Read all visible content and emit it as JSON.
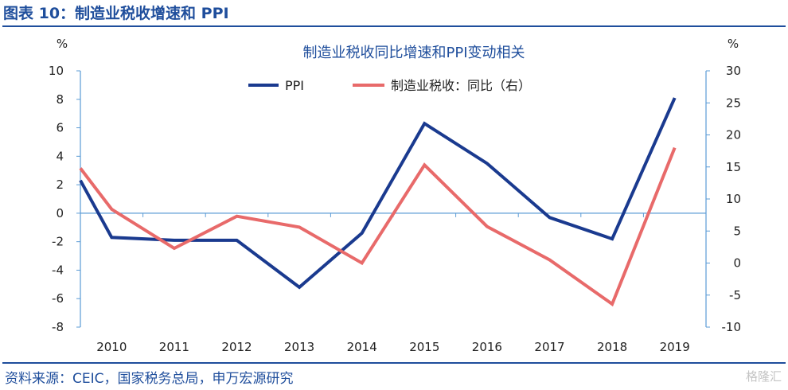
{
  "header": {
    "figure_title": "图表 10：制造业税收增速和 PPI"
  },
  "footer": {
    "source": "资料来源：CEIC，国家税务总局，申万宏源研究",
    "watermark": "格隆汇"
  },
  "colors": {
    "brand": "#1f4e9c",
    "ppi": "#1a3a8f",
    "tax": "#e86a6a",
    "axis": "#5b9bd5",
    "text": "#222222"
  },
  "chart_data": {
    "type": "line",
    "title": "制造业税收同比增速和PPI变动相关",
    "left_unit": "%",
    "right_unit": "%",
    "categories": [
      "2010",
      "2011",
      "2012",
      "2013",
      "2014",
      "2015",
      "2016",
      "2017",
      "2018",
      "2019"
    ],
    "y_left": {
      "min": -8,
      "max": 10,
      "ticks": [
        "10",
        "8",
        "6",
        "4",
        "2",
        "0",
        "-2",
        "-4",
        "-6",
        "-8"
      ]
    },
    "y_right": {
      "min": -10,
      "max": 30,
      "ticks": [
        "30",
        "25",
        "20",
        "15",
        "10",
        "5",
        "0",
        "-5",
        "-10"
      ]
    },
    "legend_position": "top-center",
    "grid": false,
    "series": [
      {
        "name": "PPI",
        "axis": "left",
        "color": "#1a3a8f",
        "x": [
          2009.5,
          2010,
          2011,
          2012,
          2013,
          2014,
          2015,
          2016,
          2017,
          2018,
          2019
        ],
        "values": [
          2.3,
          -1.7,
          -1.9,
          -1.9,
          -5.2,
          -1.4,
          6.3,
          3.5,
          -0.3,
          -1.8,
          8.1
        ]
      },
      {
        "name": "制造业税收：同比（右）",
        "axis": "right",
        "color": "#e86a6a",
        "x": [
          2009.5,
          2010,
          2011,
          2012,
          2013,
          2014,
          2015,
          2016,
          2017,
          2018,
          2019
        ],
        "values": [
          14.8,
          8.4,
          2.3,
          7.3,
          5.6,
          0.0,
          15.3,
          5.7,
          0.5,
          -6.4,
          18.0
        ]
      }
    ]
  }
}
